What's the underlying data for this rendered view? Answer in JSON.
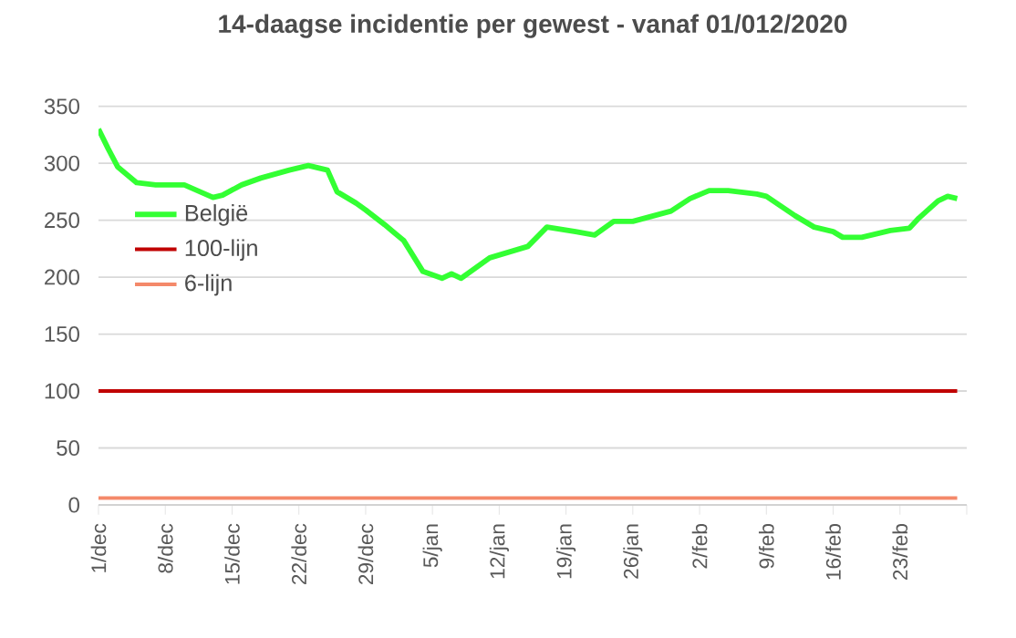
{
  "chart_data": {
    "type": "line",
    "title": "14-daagse incidentie per gewest - vanaf 01/012/2020",
    "xlim": [
      "2020-12-01",
      "2021-03-02"
    ],
    "ylim": [
      0,
      350
    ],
    "yticks": [
      0,
      50,
      100,
      150,
      200,
      250,
      300,
      350
    ],
    "xticks": [
      {
        "value": "2020-12-01",
        "label": "1/dec"
      },
      {
        "value": "2020-12-08",
        "label": "8/dec"
      },
      {
        "value": "2020-12-15",
        "label": "15/dec"
      },
      {
        "value": "2020-12-22",
        "label": "22/dec"
      },
      {
        "value": "2020-12-29",
        "label": "29/dec"
      },
      {
        "value": "2021-01-05",
        "label": "5/jan"
      },
      {
        "value": "2021-01-12",
        "label": "12/jan"
      },
      {
        "value": "2021-01-19",
        "label": "19/jan"
      },
      {
        "value": "2021-01-26",
        "label": "26/jan"
      },
      {
        "value": "2021-02-02",
        "label": "2/feb"
      },
      {
        "value": "2021-02-09",
        "label": "9/feb"
      },
      {
        "value": "2021-02-16",
        "label": "16/feb"
      },
      {
        "value": "2021-02-23",
        "label": "23/feb"
      },
      {
        "value": "2021-03-02",
        "label": null
      }
    ],
    "grid": "y",
    "legend": "left",
    "marker": "none",
    "line_style": "solid",
    "series": [
      {
        "name": "België",
        "color": "#33ff33",
        "x": [
          "2020-12-01",
          "2020-12-02",
          "2020-12-03",
          "2020-12-05",
          "2020-12-07",
          "2020-12-09",
          "2020-12-10",
          "2020-12-13",
          "2020-12-14",
          "2020-12-16",
          "2020-12-18",
          "2020-12-21",
          "2020-12-23",
          "2020-12-25",
          "2020-12-26",
          "2020-12-28",
          "2020-12-29",
          "2020-12-31",
          "2021-01-02",
          "2021-01-04",
          "2021-01-06",
          "2021-01-07",
          "2021-01-08",
          "2021-01-10",
          "2021-01-11",
          "2021-01-15",
          "2021-01-17",
          "2021-01-20",
          "2021-01-22",
          "2021-01-24",
          "2021-01-26",
          "2021-01-30",
          "2021-02-01",
          "2021-02-03",
          "2021-02-05",
          "2021-02-08",
          "2021-02-09",
          "2021-02-12",
          "2021-02-14",
          "2021-02-16",
          "2021-02-17",
          "2021-02-19",
          "2021-02-22",
          "2021-02-24",
          "2021-02-25",
          "2021-02-27",
          "2021-02-28",
          "2021-03-01"
        ],
        "values": [
          330,
          313,
          297,
          283,
          281,
          281,
          281,
          270,
          272,
          281,
          287,
          294,
          298,
          294,
          275,
          265,
          259,
          246,
          232,
          205,
          199,
          203,
          199,
          211,
          217,
          227,
          244,
          240,
          237,
          249,
          249,
          258,
          269,
          276,
          276,
          273,
          271,
          254,
          244,
          240,
          235,
          235,
          241,
          243,
          252,
          267,
          271,
          269
        ]
      },
      {
        "name": "100-lijn",
        "color": "#c00000",
        "x": [
          "2020-12-01",
          "2021-03-01"
        ],
        "values": [
          100,
          100
        ]
      },
      {
        "name": "6-lijn",
        "color": "#f4896a",
        "x": [
          "2020-12-01",
          "2021-03-01"
        ],
        "values": [
          6,
          6
        ]
      }
    ]
  }
}
